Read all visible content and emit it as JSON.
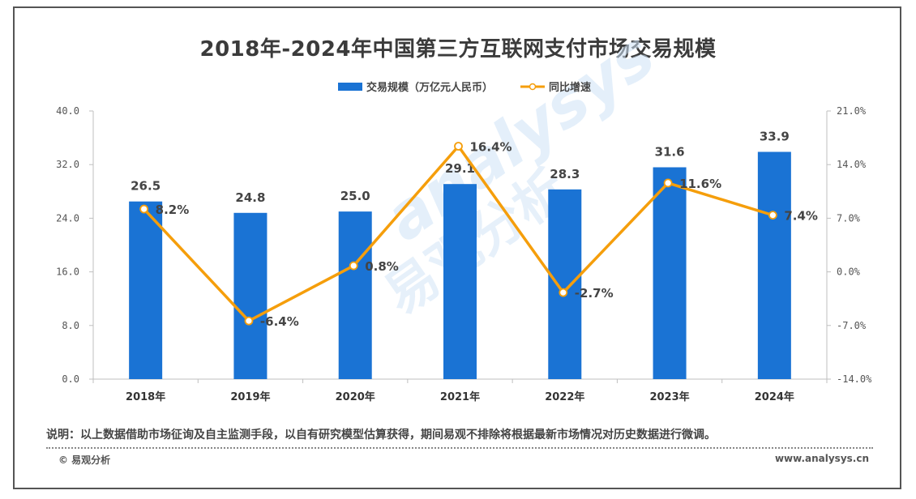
{
  "chart_data": {
    "type": "bar+line",
    "title": "2018年-2024年中国第三方互联网支付市场交易规模",
    "categories": [
      "2018年",
      "2019年",
      "2020年",
      "2021年",
      "2022年",
      "2023年",
      "2024年"
    ],
    "series": [
      {
        "name": "交易规模（万亿元人民币）",
        "type": "bar",
        "axis": "left",
        "color": "#1a73d4",
        "values": [
          26.5,
          24.8,
          25.0,
          29.1,
          28.3,
          31.6,
          33.9
        ],
        "labels": [
          "26.5",
          "24.8",
          "25.0",
          "29.1",
          "28.3",
          "31.6",
          "33.9"
        ]
      },
      {
        "name": "同比增速",
        "type": "line",
        "axis": "right",
        "color": "#f59e0b",
        "values": [
          8.2,
          -6.4,
          0.8,
          16.4,
          -2.7,
          11.6,
          7.4
        ],
        "labels": [
          "8.2%",
          "-6.4%",
          "0.8%",
          "16.4%",
          "-2.7%",
          "11.6%",
          "7.4%"
        ]
      }
    ],
    "y_left": {
      "min": 0,
      "max": 40,
      "ticks": [
        "0.0",
        "8.0",
        "16.0",
        "24.0",
        "32.0",
        "40.0"
      ]
    },
    "y_right": {
      "min": -14,
      "max": 21,
      "ticks": [
        "-14.0%",
        "-7.0%",
        "0.0%",
        "7.0%",
        "14.0%",
        "21.0%"
      ]
    },
    "legend_position": "top-center",
    "grid": false
  },
  "footer": {
    "note": "说明：以上数据借助市场征询及自主监测手段，以自有研究模型估算获得，期间易观不排除将根据最新市场情况对历史数据进行微调。",
    "brand": "© 易观分析",
    "site": "www.analysys.cn"
  },
  "watermark": {
    "text_en": "analysys",
    "text_cn": "易观分析",
    "color": "#cfe3f7"
  }
}
